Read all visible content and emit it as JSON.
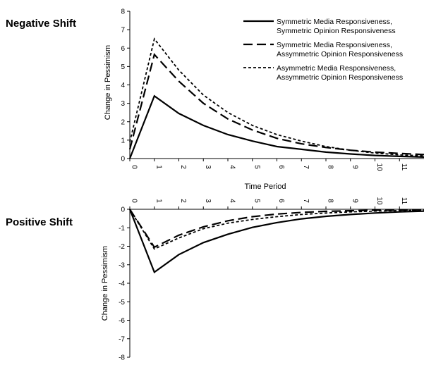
{
  "chart_data": [
    {
      "type": "line",
      "panel_title": "Negative Shift",
      "xlabel": "Time Period",
      "ylabel": "Change in Pessimism",
      "xlim": [
        0,
        12
      ],
      "ylim": [
        0,
        8
      ],
      "x_ticks": [
        0,
        1,
        2,
        3,
        4,
        5,
        6,
        7,
        8,
        9,
        10,
        11
      ],
      "y_ticks": [
        0,
        1,
        2,
        3,
        4,
        5,
        6,
        7,
        8
      ],
      "x": [
        0,
        1,
        2,
        3,
        4,
        5,
        6,
        7,
        8,
        9,
        10,
        11,
        12
      ],
      "grid": false,
      "legend": {
        "placement": "top-right"
      },
      "series": [
        {
          "name": "Symmetric Media Responsiveness, Symmetric Opinion Responsiveness",
          "legend_lines": [
            "Symmetric Media Responsiveness,",
            "Symmetric Opinion Responsiveness"
          ],
          "style": "solid",
          "values": [
            0,
            3.4,
            2.45,
            1.8,
            1.3,
            0.95,
            0.65,
            0.5,
            0.35,
            0.25,
            0.17,
            0.12,
            0.08
          ]
        },
        {
          "name": "Symmetric Media Responsiveness, Assymmetric Opinion Responsiveness",
          "legend_lines": [
            "Symmetric Media Responsiveness,",
            "Assymmetric Opinion Responsiveness"
          ],
          "style": "long-dash",
          "values": [
            0.5,
            5.65,
            4.2,
            3.0,
            2.15,
            1.55,
            1.1,
            0.8,
            0.6,
            0.45,
            0.35,
            0.28,
            0.22
          ]
        },
        {
          "name": "Asymmetric Media Responsiveness, Assymmetric Opinion Responsiveness",
          "legend_lines": [
            "Asymmetric Media Responsiveness,",
            "Assymmetric Opinion Responsiveness"
          ],
          "style": "short-dash",
          "values": [
            0.9,
            6.5,
            4.8,
            3.45,
            2.5,
            1.8,
            1.3,
            0.95,
            0.65,
            0.45,
            0.3,
            0.2,
            0.15
          ]
        }
      ]
    },
    {
      "type": "line",
      "panel_title": "Positive Shift",
      "xlabel": "",
      "ylabel": "Change in Pessimism",
      "xlim": [
        0,
        12
      ],
      "ylim": [
        -8,
        0
      ],
      "x_ticks": [
        0,
        1,
        2,
        3,
        4,
        5,
        6,
        7,
        8,
        9,
        10,
        11
      ],
      "y_ticks": [
        0,
        -1,
        -2,
        -3,
        -4,
        -5,
        -6,
        -7,
        -8
      ],
      "x": [
        0,
        1,
        2,
        3,
        4,
        5,
        6,
        7,
        8,
        9,
        10,
        11,
        12
      ],
      "grid": false,
      "series": [
        {
          "name": "Symmetric Media Responsiveness, Symmetric Opinion Responsiveness",
          "style": "solid",
          "values": [
            0,
            -3.4,
            -2.45,
            -1.8,
            -1.35,
            -0.98,
            -0.72,
            -0.52,
            -0.38,
            -0.28,
            -0.2,
            -0.14,
            -0.1
          ]
        },
        {
          "name": "Symmetric Media Responsiveness, Assymmetric Opinion Responsiveness",
          "style": "long-dash",
          "values": [
            0,
            -2.05,
            -1.4,
            -0.95,
            -0.62,
            -0.4,
            -0.26,
            -0.17,
            -0.11,
            -0.08,
            -0.05,
            -0.04,
            -0.03
          ]
        },
        {
          "name": "Asymmetric Media Responsiveness, Assymmetric Opinion Responsiveness",
          "style": "short-dash",
          "values": [
            0,
            -2.15,
            -1.55,
            -1.05,
            -0.75,
            -0.55,
            -0.4,
            -0.28,
            -0.2,
            -0.14,
            -0.1,
            -0.07,
            -0.05
          ]
        }
      ]
    }
  ]
}
